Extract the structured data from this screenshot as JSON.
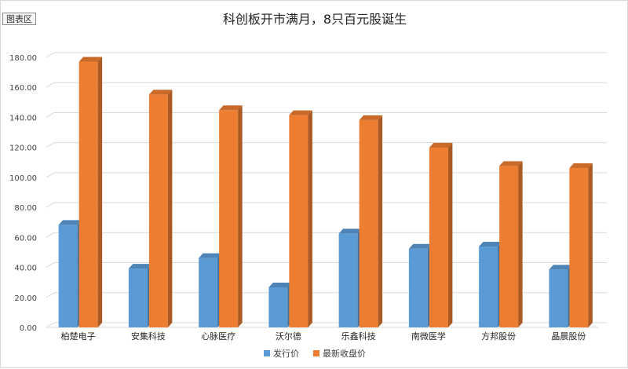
{
  "chart_area_label": "图表区",
  "chart_data": {
    "type": "bar",
    "title": "科创板开市满月，8只百元股诞生",
    "categories": [
      "柏楚电子",
      "安集科技",
      "心脉医疗",
      "沃尔德",
      "乐鑫科技",
      "南微医学",
      "方邦股份",
      "晶晨股份"
    ],
    "series": [
      {
        "name": "发行价",
        "color": "#5b9bd5",
        "values": [
          68.33,
          39.19,
          46.23,
          26.68,
          62.6,
          52.45,
          53.88,
          38.5
        ]
      },
      {
        "name": "最新收盘价",
        "color": "#ed7d31",
        "values": [
          177.1,
          155.2,
          144.8,
          141.5,
          138.2,
          119.8,
          107.6,
          106.2
        ]
      }
    ],
    "ylim": [
      0,
      180
    ],
    "yticks": [
      "0.00",
      "20.00",
      "40.00",
      "60.00",
      "80.00",
      "100.00",
      "120.00",
      "140.00",
      "160.00",
      "180.00"
    ],
    "grid": true,
    "legend_position": "bottom"
  }
}
